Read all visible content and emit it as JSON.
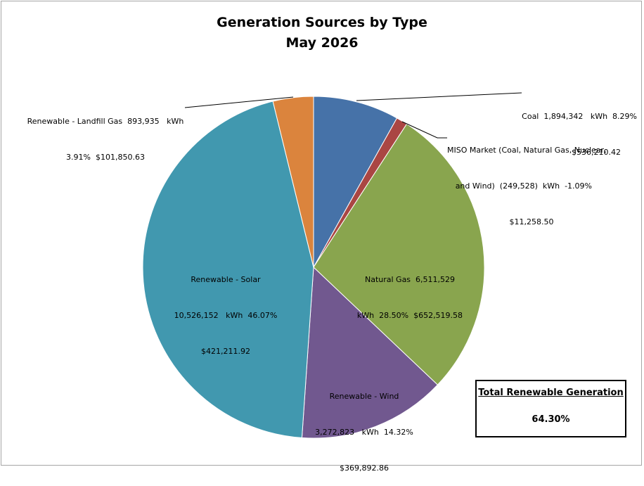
{
  "chart_data": {
    "type": "pie",
    "title": "Generation Sources by Type",
    "subtitle": "May 2026",
    "slices": [
      {
        "name": "Coal",
        "kwh": "1,894,342",
        "percent": "8.29%",
        "percent_value": 8.29,
        "cost": "$536,210.42",
        "color": "#4672a8"
      },
      {
        "name": "MISO Market (Coal, Natural Gas, Nuclear, and Wind)",
        "kwh": "(249,528)",
        "percent": "-1.09%",
        "percent_value": 1.09,
        "cost": "$11,258.50",
        "color": "#aa4643"
      },
      {
        "name": "Natural Gas",
        "kwh": "6,511,529",
        "percent": "28.50%",
        "percent_value": 28.5,
        "cost": "$652,519.58",
        "color": "#89a54e"
      },
      {
        "name": "Renewable - Wind",
        "kwh": "3,272,823",
        "percent": "14.32%",
        "percent_value": 14.32,
        "cost": "$369,892.86",
        "color": "#71588f"
      },
      {
        "name": "Renewable - Solar",
        "kwh": "10,526,152",
        "percent": "46.07%",
        "percent_value": 46.07,
        "cost": "$421,211.92",
        "color": "#4198af"
      },
      {
        "name": "Renewable - Landfill Gas",
        "kwh": "893,935",
        "percent": "3.91%",
        "percent_value": 3.91,
        "cost": "$101,850.63",
        "color": "#db843d"
      }
    ],
    "label_lines": {
      "coal": [
        "Coal  1,894,342   kWh  8.29%",
        "$536,210.42"
      ],
      "miso": [
        "MISO Market (Coal, Natural Gas, Nuclear,",
        "and Wind)  (249,528)  kWh  -1.09%",
        "$11,258.50"
      ],
      "natural_gas": [
        "Natural Gas  6,511,529",
        "kWh  28.50%  $652,519.58"
      ],
      "wind": [
        "Renewable - Wind",
        "3,272,823   kWh  14.32%",
        "$369,892.86"
      ],
      "solar": [
        "Renewable - Solar",
        "10,526,152   kWh  46.07%",
        "$421,211.92"
      ],
      "landfill": [
        "Renewable - Landfill Gas  893,935   kWh",
        "3.91%  $101,850.63"
      ]
    },
    "total_box": {
      "label": "Total Renewable Generation",
      "value": "64.30%"
    }
  }
}
